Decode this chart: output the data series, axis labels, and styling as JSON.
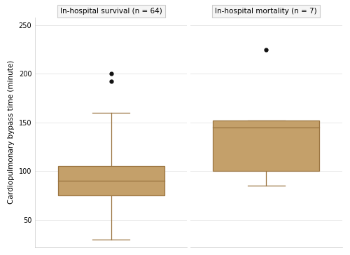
{
  "groups": [
    "In-hospital survival (n = 64)",
    "In-hospital mortality (n = 7)"
  ],
  "survival": {
    "whisker_low": 30,
    "q1": 75,
    "median": 90,
    "q3": 105,
    "whisker_high": 160,
    "outliers": [
      192,
      200
    ]
  },
  "mortality": {
    "whisker_low": 85,
    "q1": 100,
    "median": 145,
    "q3": 152,
    "whisker_high": 152,
    "outliers": [
      225
    ]
  },
  "ylabel": "Cardiopulmonary bypass time (minute)",
  "ylim": [
    22,
    258
  ],
  "yticks": [
    50,
    100,
    150,
    200,
    250
  ],
  "box_color": "#c4a06a",
  "box_edge_color": "#9a7440",
  "median_color": "#9a7440",
  "whisker_color": "#9a7440",
  "outlier_color": "#111111",
  "background_color": "#ffffff",
  "grid_color": "#e8e8e8",
  "title_fontsize": 7.5,
  "ylabel_fontsize": 7.5,
  "tick_fontsize": 7,
  "cap_ratio": 0.35,
  "line_width": 0.9
}
